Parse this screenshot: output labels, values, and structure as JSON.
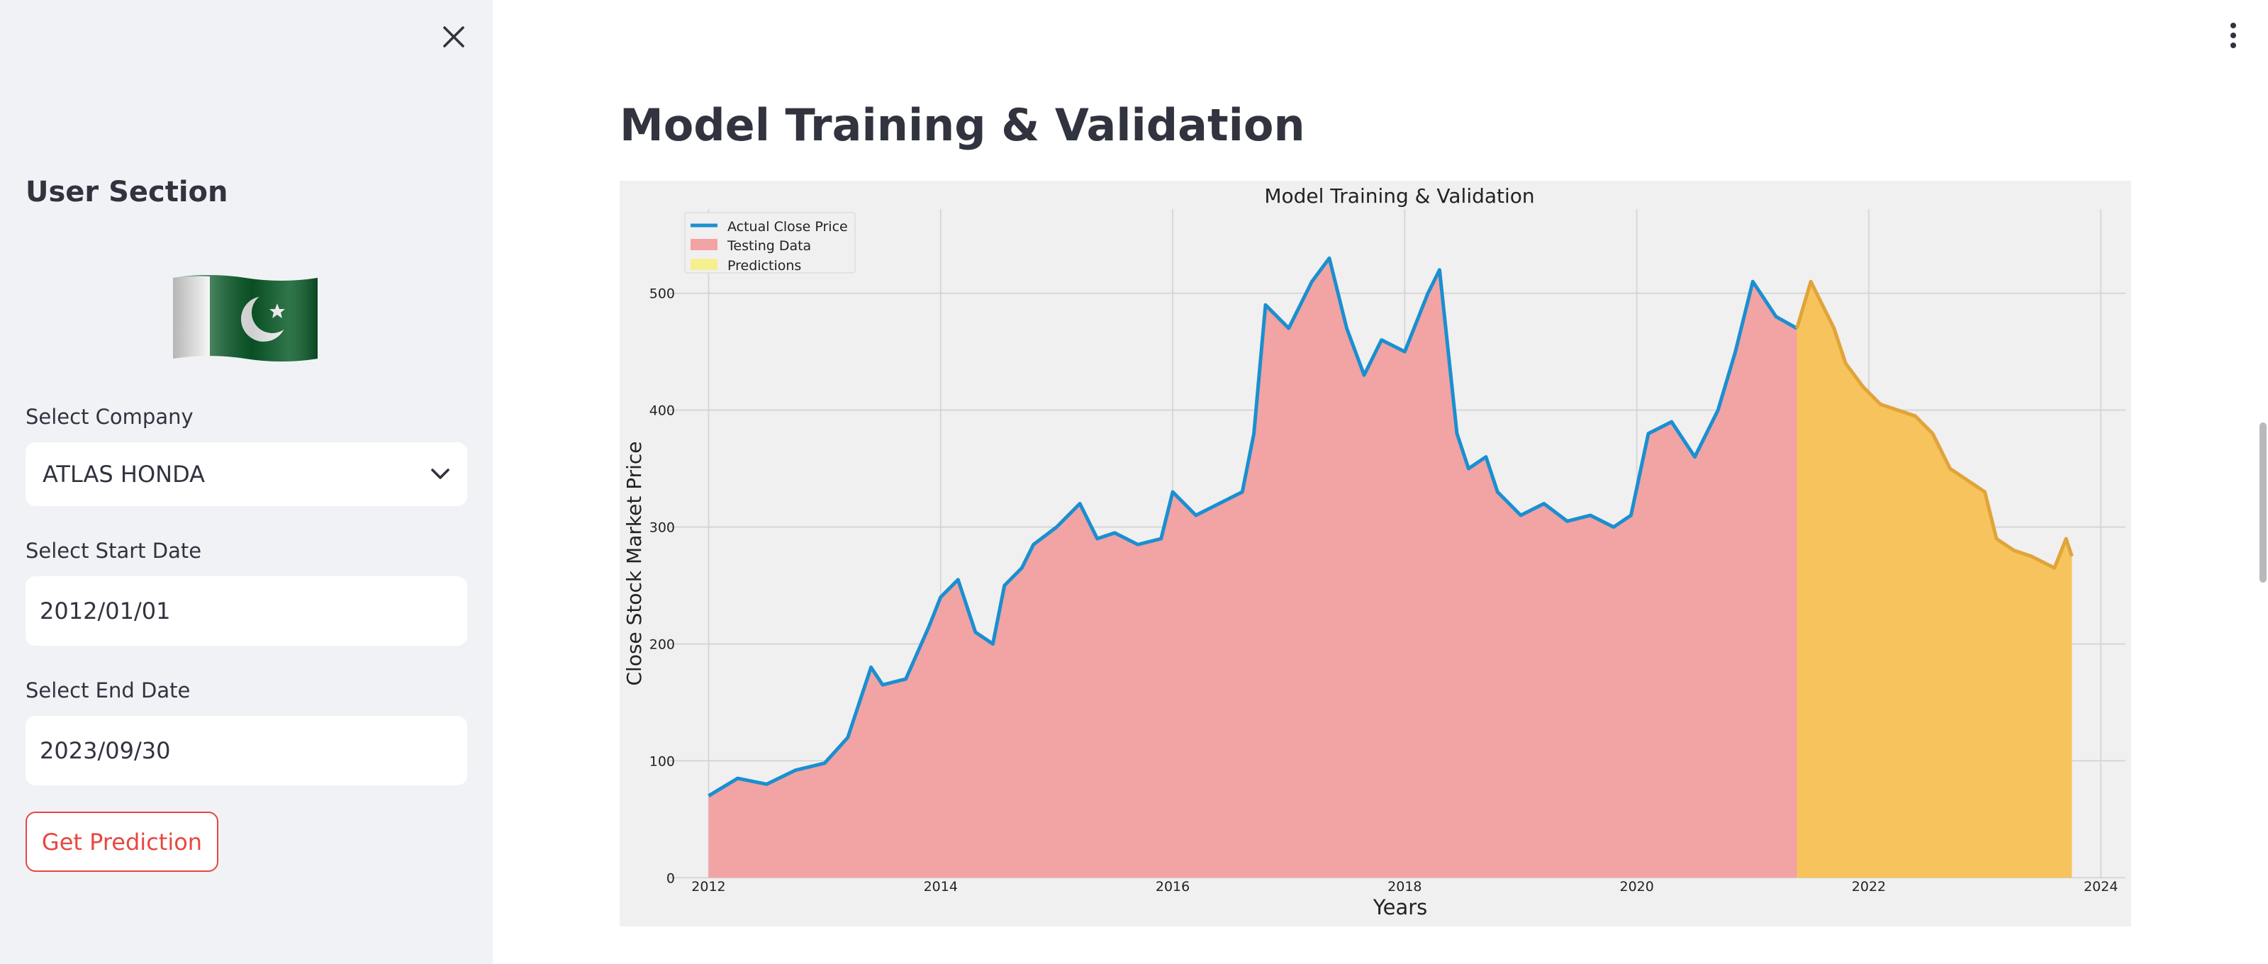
{
  "sidebar": {
    "title": "User Section",
    "company_label": "Select Company",
    "company_value": "ATLAS HONDA",
    "start_date_label": "Select Start Date",
    "start_date_value": "2012/01/01",
    "end_date_label": "Select End Date",
    "end_date_value": "2023/09/30",
    "predict_button": "Get Prediction",
    "close_icon": "close-icon",
    "flag_icon": "pakistan-flag-icon"
  },
  "main": {
    "title": "Model Training & Validation",
    "menu_icon": "more-vertical-icon"
  },
  "colors": {
    "accent": "#e8473f",
    "actual_line": "#1a8fd1",
    "testing_fill": "#f2a3a3",
    "prediction_fill": "#f7c35c",
    "prediction_line": "#e0a43a"
  },
  "chart_data": {
    "type": "area",
    "title": "Model Training & Validation",
    "xlabel": "Years",
    "ylabel": "Close Stock Market Price",
    "xlim": [
      2011.6,
      2024.2
    ],
    "ylim": [
      -15,
      575
    ],
    "x_ticks": [
      2012,
      2014,
      2016,
      2018,
      2020,
      2022,
      2024
    ],
    "x_tick_labels": [
      "2012",
      "2014",
      "2016",
      "2018",
      "2020",
      "2022",
      "2024"
    ],
    "y_ticks": [
      0,
      100,
      200,
      300,
      400,
      500
    ],
    "y_tick_labels": [
      "0",
      "100",
      "200",
      "300",
      "400",
      "500"
    ],
    "grid": true,
    "legend_position": "top-left",
    "series": [
      {
        "name": "Actual Close Price",
        "x": [
          2012.0,
          2012.25,
          2012.5,
          2012.75,
          2013.0,
          2013.2,
          2013.4,
          2013.5,
          2013.7,
          2013.9,
          2014.0,
          2014.15,
          2014.3,
          2014.45,
          2014.55,
          2014.7,
          2014.8,
          2015.0,
          2015.2,
          2015.35,
          2015.5,
          2015.7,
          2015.9,
          2016.0,
          2016.2,
          2016.4,
          2016.6,
          2016.7,
          2016.8,
          2017.0,
          2017.2,
          2017.35,
          2017.5,
          2017.65,
          2017.8,
          2018.0,
          2018.2,
          2018.3,
          2018.45,
          2018.55,
          2018.7,
          2018.8,
          2019.0,
          2019.2,
          2019.4,
          2019.6,
          2019.8,
          2019.95,
          2020.1,
          2020.3,
          2020.5,
          2020.7,
          2020.85,
          2021.0,
          2021.2,
          2021.38
        ],
        "values": [
          70,
          85,
          80,
          92,
          98,
          120,
          180,
          165,
          170,
          215,
          240,
          255,
          210,
          200,
          250,
          265,
          285,
          300,
          320,
          290,
          295,
          285,
          290,
          330,
          310,
          320,
          330,
          380,
          490,
          470,
          510,
          530,
          470,
          430,
          460,
          450,
          500,
          520,
          380,
          350,
          360,
          330,
          310,
          320,
          305,
          310,
          300,
          310,
          380,
          390,
          360,
          400,
          450,
          510,
          480,
          470
        ]
      },
      {
        "name": "Testing Data",
        "x": [
          2012.0,
          2021.38
        ],
        "values": [
          70,
          470
        ]
      },
      {
        "name": "Predictions",
        "x": [
          2021.38,
          2021.5,
          2021.6,
          2021.7,
          2021.8,
          2021.95,
          2022.1,
          2022.25,
          2022.4,
          2022.55,
          2022.7,
          2022.85,
          2023.0,
          2023.1,
          2023.25,
          2023.4,
          2023.5,
          2023.6,
          2023.7,
          2023.75
        ],
        "values": [
          470,
          510,
          490,
          470,
          440,
          420,
          405,
          400,
          395,
          380,
          350,
          340,
          330,
          290,
          280,
          275,
          270,
          265,
          290,
          275
        ]
      }
    ]
  }
}
